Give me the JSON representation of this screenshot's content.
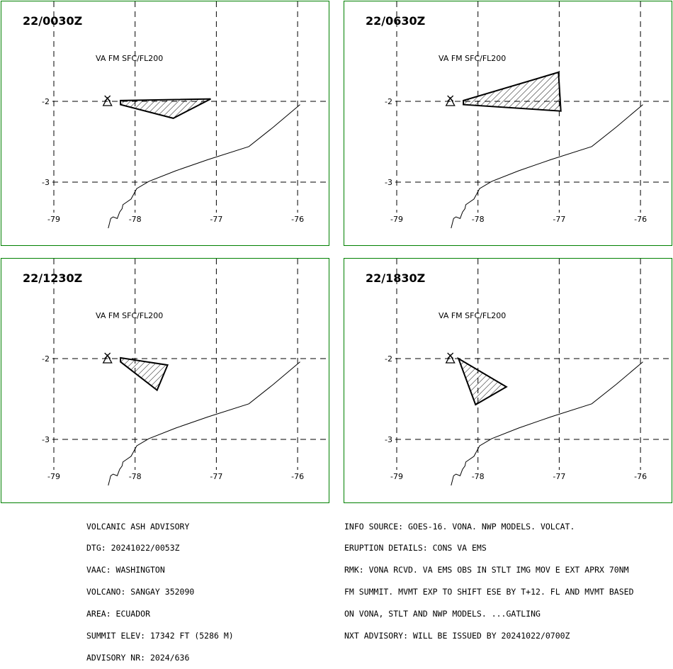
{
  "panels": [
    {
      "time": "22/0030Z",
      "label": "VA FM SFC/FL200",
      "polygon": [
        [
          -78.18,
          -1.99
        ],
        [
          -78.18,
          -2.04
        ],
        [
          -77.53,
          -2.21
        ],
        [
          -77.07,
          -1.97
        ]
      ]
    },
    {
      "time": "22/0630Z",
      "label": "VA FM SFC/FL200",
      "polygon": [
        [
          -78.18,
          -1.99
        ],
        [
          -78.18,
          -2.04
        ],
        [
          -76.98,
          -2.12
        ],
        [
          -77.01,
          -1.64
        ]
      ]
    },
    {
      "time": "22/1230Z",
      "label": "VA FM SFC/FL200",
      "polygon": [
        [
          -78.18,
          -1.99
        ],
        [
          -78.18,
          -2.04
        ],
        [
          -77.73,
          -2.39
        ],
        [
          -77.6,
          -2.08
        ]
      ]
    },
    {
      "time": "22/1830Z",
      "label": "VA FM SFC/FL200",
      "polygon": [
        [
          -78.24,
          -2.0
        ],
        [
          -78.03,
          -2.57
        ],
        [
          -77.65,
          -2.35
        ]
      ]
    }
  ],
  "map": {
    "vent": [
      -78.34,
      -2.0
    ],
    "lon_ticks": [
      "-79",
      "-78",
      "-77",
      "-76"
    ],
    "lat_ticks": [
      "-2",
      "-3"
    ],
    "lon_values": [
      -79,
      -78,
      -77,
      -76
    ],
    "lat_values": [
      -2,
      -3
    ],
    "coastline": [
      [
        -78.33,
        -3.57
      ],
      [
        -78.3,
        -3.45
      ],
      [
        -78.27,
        -3.43
      ],
      [
        -78.22,
        -3.45
      ],
      [
        -78.19,
        -3.37
      ],
      [
        -78.16,
        -3.33
      ],
      [
        -78.15,
        -3.28
      ],
      [
        -78.05,
        -3.21
      ],
      [
        -77.98,
        -3.08
      ],
      [
        -77.83,
        -2.99
      ],
      [
        -77.5,
        -2.86
      ],
      [
        -77.1,
        -2.72
      ],
      [
        -76.6,
        -2.56
      ],
      [
        -76.3,
        -2.32
      ],
      [
        -75.97,
        -2.04
      ]
    ]
  },
  "info_left": [
    "VOLCANIC ASH ADVISORY",
    "DTG: 20241022/0053Z",
    "VAAC: WASHINGTON",
    "VOLCANO: SANGAY 352090",
    "AREA: ECUADOR",
    "SUMMIT ELEV: 17342 FT (5286 M)",
    "ADVISORY NR: 2024/636"
  ],
  "info_right": [
    "INFO SOURCE: GOES-16. VONA. NWP MODELS. VOLCAT.",
    "ERUPTION DETAILS: CONS VA EMS",
    "RMK: VONA RCVD. VA EMS OBS IN STLT IMG MOV E EXT APRX 70NM",
    "FM SUMMIT. MVMT EXP TO SHIFT ESE BY T+12. FL AND MVMT BASED",
    "ON VONA, STLT AND NWP MODELS. ...GATLING",
    "NXT ADVISORY: WILL BE ISSUED BY 20241022/0700Z"
  ],
  "colors": {
    "frame": "#008000",
    "grid": "#000000",
    "plume": "#000000"
  }
}
